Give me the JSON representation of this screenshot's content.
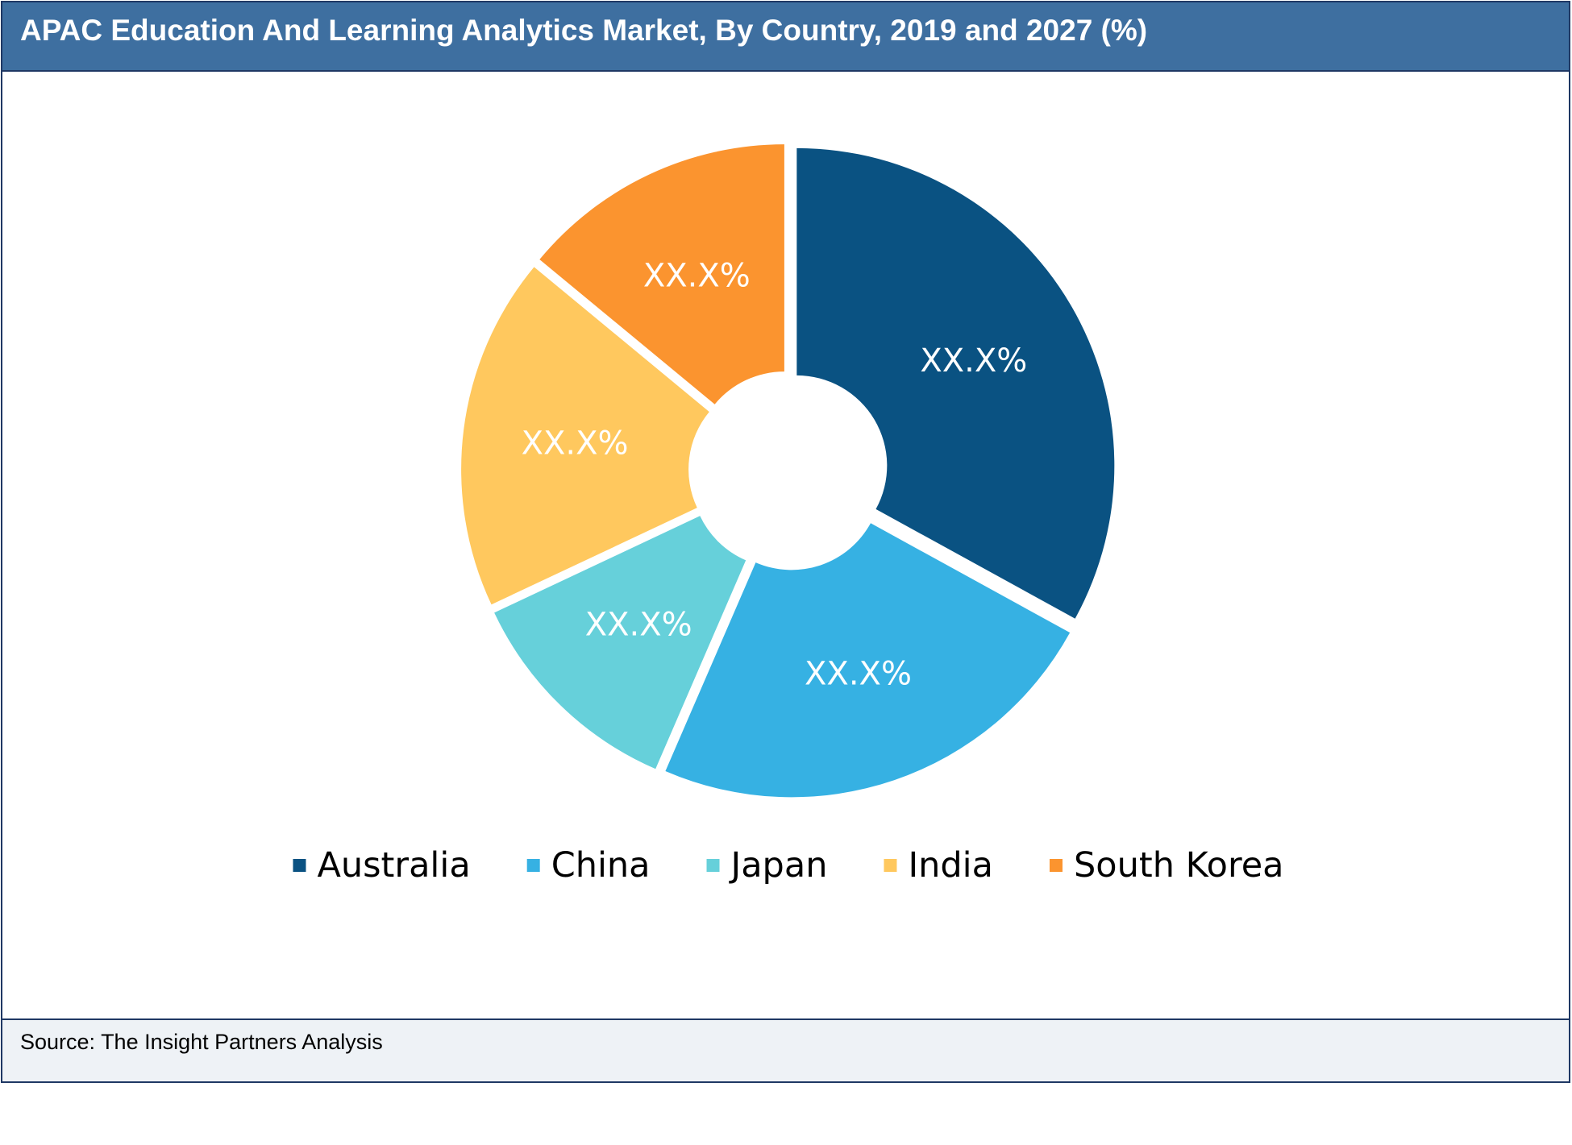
{
  "title": "APAC Education And Learning Analytics Market, By Country, 2019 and 2027 (%)",
  "source": "Source: The Insight Partners Analysis",
  "chart_data": {
    "type": "pie",
    "title": "APAC Education And Learning Analytics Market, By Country, 2019 and 2027 (%)",
    "style": "donut",
    "legend_position": "bottom",
    "categories": [
      "Australia",
      "China",
      "Japan",
      "India",
      "South Korea"
    ],
    "values": [
      33,
      23.5,
      11.5,
      18,
      14
    ],
    "data_labels": [
      "XX.X%",
      "XX.X%",
      "XX.X%",
      "XX.X%",
      "XX.X%"
    ],
    "colors": [
      "#0a5282",
      "#36b1e3",
      "#66d0da",
      "#ffc85e",
      "#fb942f"
    ]
  }
}
